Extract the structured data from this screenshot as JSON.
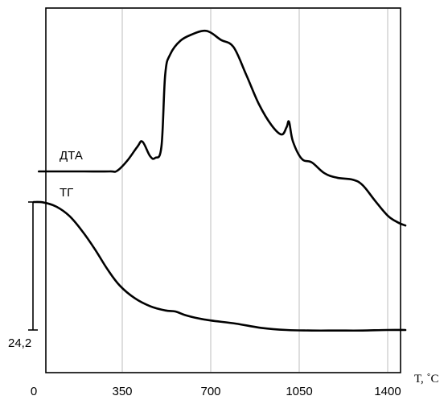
{
  "chart_data": {
    "type": "line",
    "x_unit_label": "T, ˚C",
    "xlim": [
      0,
      1470
    ],
    "x_ticks": [
      {
        "value": 0,
        "label": "0"
      },
      {
        "value": 350,
        "label": "350"
      },
      {
        "value": 700,
        "label": "700"
      },
      {
        "value": 1050,
        "label": "1050"
      },
      {
        "value": 1400,
        "label": "1400"
      }
    ],
    "grid_x": [
      350,
      700,
      1050,
      1400
    ],
    "tg_scale_label": "24,2",
    "tg_scale_range": [
      0,
      24.2
    ],
    "series": [
      {
        "name": "ДТА",
        "units": "relative",
        "points": [
          [
            20,
            0.0
          ],
          [
            120,
            0.0
          ],
          [
            200,
            0.0
          ],
          [
            300,
            0.0
          ],
          [
            330,
            0.15
          ],
          [
            370,
            2.4
          ],
          [
            410,
            5.5
          ],
          [
            430,
            6.6
          ],
          [
            460,
            3.4
          ],
          [
            480,
            3.0
          ],
          [
            505,
            5.5
          ],
          [
            520,
            21.5
          ],
          [
            540,
            26.0
          ],
          [
            580,
            29.0
          ],
          [
            630,
            30.5
          ],
          [
            670,
            31.2
          ],
          [
            700,
            30.8
          ],
          [
            740,
            29.2
          ],
          [
            790,
            27.6
          ],
          [
            840,
            21.5
          ],
          [
            890,
            15.0
          ],
          [
            940,
            10.3
          ],
          [
            980,
            8.2
          ],
          [
            1000,
            9.8
          ],
          [
            1010,
            11.0
          ],
          [
            1025,
            6.7
          ],
          [
            1060,
            2.8
          ],
          [
            1100,
            2.0
          ],
          [
            1150,
            -0.4
          ],
          [
            1200,
            -1.4
          ],
          [
            1260,
            -1.8
          ],
          [
            1300,
            -3.0
          ],
          [
            1350,
            -6.5
          ],
          [
            1400,
            -9.8
          ],
          [
            1440,
            -11.3
          ],
          [
            1470,
            -12.0
          ]
        ]
      },
      {
        "name": "ТГ",
        "units": "relative",
        "points": [
          [
            0,
            0.0
          ],
          [
            40,
            0.1
          ],
          [
            90,
            0.9
          ],
          [
            140,
            2.6
          ],
          [
            190,
            5.4
          ],
          [
            240,
            8.8
          ],
          [
            290,
            12.6
          ],
          [
            340,
            15.8
          ],
          [
            400,
            18.2
          ],
          [
            460,
            19.7
          ],
          [
            520,
            20.5
          ],
          [
            560,
            20.7
          ],
          [
            600,
            21.4
          ],
          [
            650,
            22.0
          ],
          [
            700,
            22.4
          ],
          [
            800,
            23.0
          ],
          [
            900,
            23.8
          ],
          [
            1000,
            24.2
          ],
          [
            1100,
            24.3
          ],
          [
            1200,
            24.3
          ],
          [
            1300,
            24.3
          ],
          [
            1400,
            24.2
          ],
          [
            1470,
            24.2
          ]
        ]
      }
    ]
  }
}
